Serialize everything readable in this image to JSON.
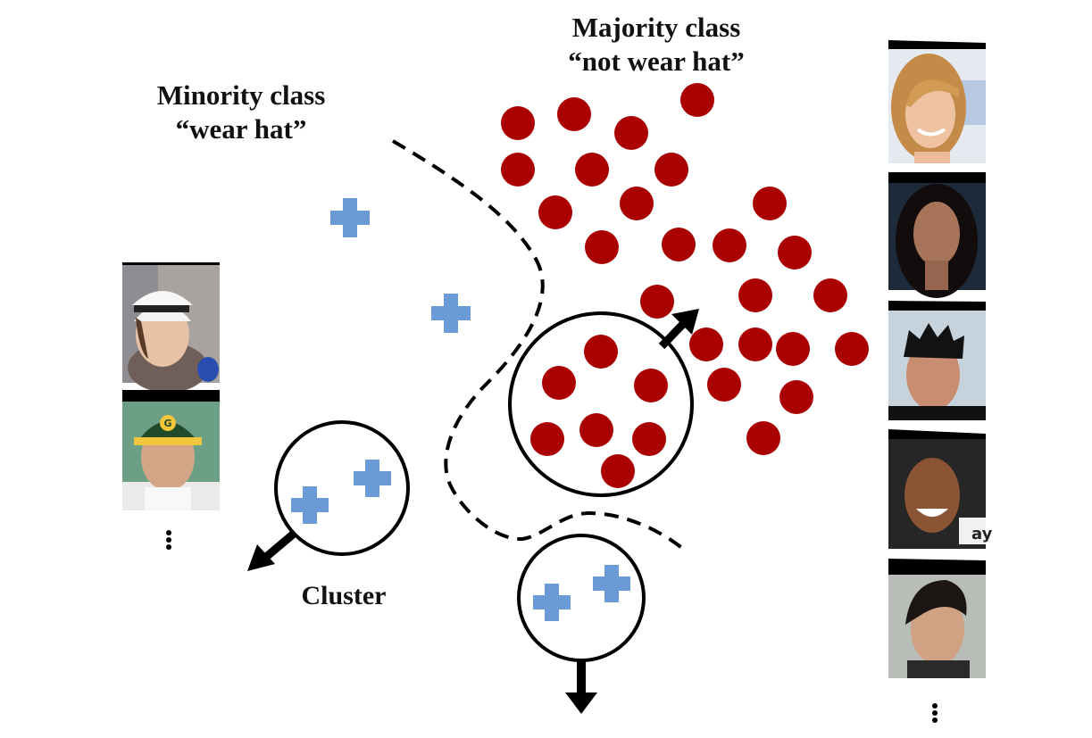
{
  "labels": {
    "minority_title": "Minority class",
    "minority_subtitle": "“wear hat”",
    "majority_title": "Majority class",
    "majority_subtitle": "“not wear hat”",
    "cluster": "Cluster"
  },
  "colors": {
    "majority_dot": "#aa0000",
    "minority_plus": "#6b9bd6",
    "stroke": "#000000",
    "background": "#ffffff"
  },
  "photos": {
    "minority": [
      {
        "icon": "woman-white-fedora-photo"
      },
      {
        "icon": "man-green-cap-photo"
      }
    ],
    "majority": [
      {
        "icon": "blonde-woman-photo"
      },
      {
        "icon": "dark-haired-woman-photo"
      },
      {
        "icon": "spiky-haired-man-photo"
      },
      {
        "icon": "smiling-bald-man-photo"
      },
      {
        "icon": "dark-haired-man-photo"
      }
    ]
  }
}
